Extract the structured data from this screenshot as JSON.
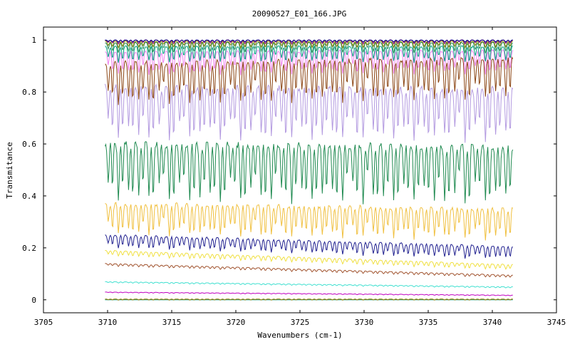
{
  "chart_data": {
    "type": "line",
    "title": "20090527_E01_166.JPG",
    "xlabel": "Wavenumbers (cm-1)",
    "ylabel": "Transmitance",
    "xlim": [
      3705,
      3745
    ],
    "ylim": [
      -0.05,
      1.05
    ],
    "x_ticks": [
      "3705",
      "3710",
      "3715",
      "3720",
      "3725",
      "3730",
      "3735",
      "3740",
      "3745"
    ],
    "y_ticks": [
      "0",
      "0.2",
      "0.4",
      "0.6",
      "0.8",
      "1"
    ],
    "grid": false,
    "legend": "none",
    "x_range_of_data": [
      3709.8,
      3741.6
    ],
    "series": [
      {
        "color": "#008f6a",
        "baseline_start": 0.0,
        "baseline_end": 0.0,
        "dip_depth": 0.0
      },
      {
        "color": "#9b7a00",
        "baseline_start": 0.003,
        "baseline_end": 0.003,
        "dip_depth": 0.004
      },
      {
        "color": "#c000c0",
        "baseline_start": 0.03,
        "baseline_end": 0.018,
        "dip_depth": 0.003
      },
      {
        "color": "#40e0d0",
        "baseline_start": 0.07,
        "baseline_end": 0.05,
        "dip_depth": 0.005
      },
      {
        "color": "#a0522d",
        "baseline_start": 0.14,
        "baseline_end": 0.095,
        "dip_depth": 0.01
      },
      {
        "color": "#f0e040",
        "baseline_start": 0.19,
        "baseline_end": 0.135,
        "dip_depth": 0.02
      },
      {
        "color": "#20208f",
        "baseline_start": 0.25,
        "baseline_end": 0.205,
        "dip_depth": 0.05
      },
      {
        "color": "#f0c040",
        "baseline_start": 0.37,
        "baseline_end": 0.35,
        "dip_depth": 0.12
      },
      {
        "color": "#1f8a50",
        "baseline_start": 0.6,
        "baseline_end": 0.59,
        "dip_depth": 0.22
      },
      {
        "color": "#b39ae0",
        "baseline_start": 0.82,
        "baseline_end": 0.81,
        "dip_depth": 0.2
      },
      {
        "color": "#8b4513",
        "baseline_start": 0.91,
        "baseline_end": 0.93,
        "dip_depth": 0.16
      },
      {
        "color": "#ee82ee",
        "baseline_start": 0.955,
        "baseline_end": 0.96,
        "dip_depth": 0.09
      },
      {
        "color": "#00a080",
        "baseline_start": 0.975,
        "baseline_end": 0.975,
        "dip_depth": 0.06
      },
      {
        "color": "#2e8b57",
        "baseline_start": 0.99,
        "baseline_end": 0.99,
        "dip_depth": 0.04
      },
      {
        "color": "#808000",
        "baseline_start": 0.995,
        "baseline_end": 0.995,
        "dip_depth": 0.025
      },
      {
        "color": "#800080",
        "baseline_start": 1.0,
        "baseline_end": 1.0,
        "dip_depth": 0.015
      },
      {
        "color": "#000080",
        "baseline_start": 1.0,
        "baseline_end": 1.0,
        "dip_depth": 0.008
      }
    ],
    "colors": {
      "frame": "#000000",
      "background": "#ffffff"
    }
  }
}
